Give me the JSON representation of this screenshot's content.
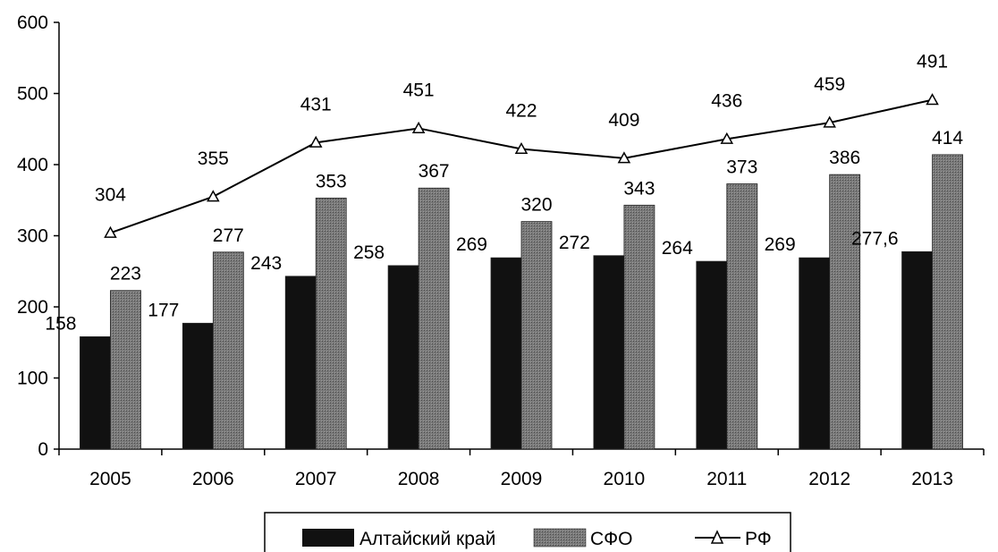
{
  "chart_data": {
    "type": "bar",
    "categories": [
      "2005",
      "2006",
      "2007",
      "2008",
      "2009",
      "2010",
      "2011",
      "2012",
      "2013"
    ],
    "series": [
      {
        "name": "Алтайский край",
        "type": "bar",
        "values": [
          158,
          177,
          243,
          258,
          269,
          272,
          264,
          269,
          277.6
        ],
        "labels": [
          "158",
          "177",
          "243",
          "258",
          "269",
          "272",
          "264",
          "269",
          "277,6"
        ],
        "color": "#111111"
      },
      {
        "name": "СФО",
        "type": "bar",
        "values": [
          223,
          277,
          353,
          367,
          320,
          343,
          373,
          386,
          414
        ],
        "labels": [
          "223",
          "277",
          "353",
          "367",
          "320",
          "343",
          "373",
          "386",
          "414"
        ],
        "color": "#6e6e6e"
      },
      {
        "name": "РФ",
        "type": "line",
        "marker": "triangle",
        "values": [
          304,
          355,
          431,
          451,
          422,
          409,
          436,
          459,
          491
        ],
        "labels": [
          "304",
          "355",
          "431",
          "451",
          "422",
          "409",
          "436",
          "459",
          "491"
        ],
        "color": "#000000"
      }
    ],
    "ylim": [
      0,
      600
    ],
    "yticks": [
      "0",
      "100",
      "200",
      "300",
      "400",
      "500",
      "600"
    ],
    "grid": false,
    "legend_position": "bottom"
  }
}
